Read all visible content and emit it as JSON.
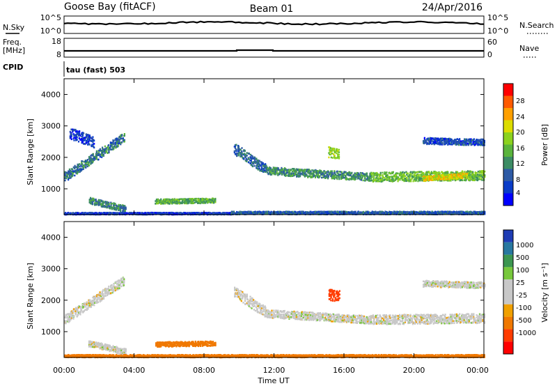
{
  "header": {
    "station": "Goose Bay (fitACF)",
    "beam": "Beam 01",
    "date": "24/Apr/2016"
  },
  "noise_panel": {
    "left_label": "N.Sky",
    "left_ticks": [
      "10^5",
      "10^0"
    ],
    "right_label": "N.Search",
    "right_ticks": [
      "10^5",
      "10^0"
    ]
  },
  "freq_panel": {
    "left_label_line1": "Freq.",
    "left_label_line2": "[MHz]",
    "left_ticks": [
      "18",
      "8"
    ],
    "right_label": "Nave",
    "right_ticks": [
      "60",
      "0"
    ]
  },
  "cpid": {
    "label": "CPID",
    "program": "tau (fast) 503"
  },
  "time_axis": {
    "ticks": [
      "00:00",
      "04:00",
      "08:00",
      "12:00",
      "16:00",
      "20:00",
      "00:00"
    ],
    "label": "Time UT"
  },
  "power_colorbar": {
    "label": "Power [dB]",
    "ticks": [
      "28",
      "24",
      "20",
      "16",
      "12",
      "8",
      "4"
    ]
  },
  "velocity_colorbar": {
    "label": "Velocity [m s⁻¹]",
    "ticks": [
      "1000",
      "500",
      "100",
      "25",
      "-25",
      "-100",
      "-500",
      "-1000"
    ]
  },
  "chart_data": [
    {
      "type": "heatmap",
      "title": "",
      "quantity": "Power",
      "xlabel": "Time UT",
      "ylabel": "Slant Range [km]",
      "xlim": [
        "00:00",
        "24:00"
      ],
      "ylim": [
        180,
        4500
      ],
      "y_ticks": [
        1000,
        2000,
        3000,
        4000
      ],
      "colorbar": {
        "label": "Power [dB]",
        "ticks": [
          4,
          8,
          12,
          16,
          20,
          24,
          28
        ],
        "range": [
          0,
          30
        ]
      },
      "colors": [
        "#0000ff",
        "#0a3cc8",
        "#2d5aa5",
        "#3c8c64",
        "#5ab43c",
        "#8cd21e",
        "#dcdc00",
        "#ffa000",
        "#ff5a00",
        "#ff0000"
      ],
      "bands": [
        {
          "t_start": 0.0,
          "t_end": 3.4,
          "r_start": 1400,
          "r_end": 2650,
          "width_km": 300,
          "level_db": 9
        },
        {
          "t_start": 0.3,
          "t_end": 1.7,
          "r_start": 2800,
          "r_end": 2500,
          "width_km": 350,
          "level_db": 5
        },
        {
          "t_start": 1.4,
          "t_end": 3.5,
          "r_start": 650,
          "r_end": 380,
          "width_km": 200,
          "level_db": 10
        },
        {
          "t_start": 5.2,
          "t_end": 8.6,
          "r_start": 620,
          "r_end": 650,
          "width_km": 150,
          "level_db": 13
        },
        {
          "t_start": 0.0,
          "t_end": 9.5,
          "r_start": 240,
          "r_end": 240,
          "width_km": 60,
          "level_db": 5
        },
        {
          "t_start": 9.7,
          "t_end": 11.5,
          "r_start": 2300,
          "r_end": 1650,
          "width_km": 350,
          "level_db": 8
        },
        {
          "t_start": 11.5,
          "t_end": 17.5,
          "r_start": 1600,
          "r_end": 1400,
          "width_km": 250,
          "level_db": 11
        },
        {
          "t_start": 15.1,
          "t_end": 15.7,
          "r_start": 2200,
          "r_end": 2150,
          "width_km": 350,
          "level_db": 16
        },
        {
          "t_start": 17.5,
          "t_end": 24.0,
          "r_start": 1400,
          "r_end": 1450,
          "width_km": 300,
          "level_db": 14
        },
        {
          "t_start": 20.5,
          "t_end": 23.0,
          "r_start": 1350,
          "r_end": 1450,
          "width_km": 150,
          "level_db": 20
        },
        {
          "t_start": 20.5,
          "t_end": 24.0,
          "r_start": 2550,
          "r_end": 2500,
          "width_km": 200,
          "level_db": 6
        },
        {
          "t_start": 9.5,
          "t_end": 24.0,
          "r_start": 260,
          "r_end": 260,
          "width_km": 90,
          "level_db": 7
        }
      ]
    },
    {
      "type": "heatmap",
      "title": "",
      "quantity": "Velocity",
      "xlabel": "Time UT",
      "ylabel": "Slant Range [km]",
      "xlim": [
        "00:00",
        "24:00"
      ],
      "ylim": [
        180,
        4500
      ],
      "y_ticks": [
        1000,
        2000,
        3000,
        4000
      ],
      "colorbar": {
        "label": "Velocity [m s⁻¹]",
        "ticks": [
          1000,
          500,
          100,
          25,
          -25,
          -100,
          -500,
          -1000
        ]
      },
      "colors": [
        "#1e3cb4",
        "#2878a0",
        "#3c9650",
        "#78c83c",
        "#c8c8c8",
        "#c8c8c8",
        "#f0a000",
        "#f07800",
        "#ff3c00",
        "#ff0000"
      ],
      "bands": [
        {
          "t_start": 0.0,
          "t_end": 3.4,
          "r_start": 1400,
          "r_end": 2650,
          "width_km": 300,
          "velocity": 0
        },
        {
          "t_start": 1.4,
          "t_end": 3.5,
          "r_start": 650,
          "r_end": 380,
          "width_km": 200,
          "velocity": 0
        },
        {
          "t_start": 5.2,
          "t_end": 8.6,
          "r_start": 620,
          "r_end": 650,
          "width_km": 150,
          "velocity": -200
        },
        {
          "t_start": 9.7,
          "t_end": 11.5,
          "r_start": 2300,
          "r_end": 1650,
          "width_km": 350,
          "velocity": 0
        },
        {
          "t_start": 11.5,
          "t_end": 17.5,
          "r_start": 1600,
          "r_end": 1400,
          "width_km": 250,
          "velocity": 0
        },
        {
          "t_start": 15.1,
          "t_end": 15.7,
          "r_start": 2200,
          "r_end": 2150,
          "width_km": 350,
          "velocity": -600
        },
        {
          "t_start": 17.5,
          "t_end": 24.0,
          "r_start": 1400,
          "r_end": 1450,
          "width_km": 300,
          "velocity": 0
        },
        {
          "t_start": 20.5,
          "t_end": 24.0,
          "r_start": 2550,
          "r_end": 2500,
          "width_km": 200,
          "velocity": 0
        },
        {
          "t_start": 0.0,
          "t_end": 24.0,
          "r_start": 250,
          "r_end": 250,
          "width_km": 80,
          "velocity": -300
        }
      ]
    }
  ]
}
